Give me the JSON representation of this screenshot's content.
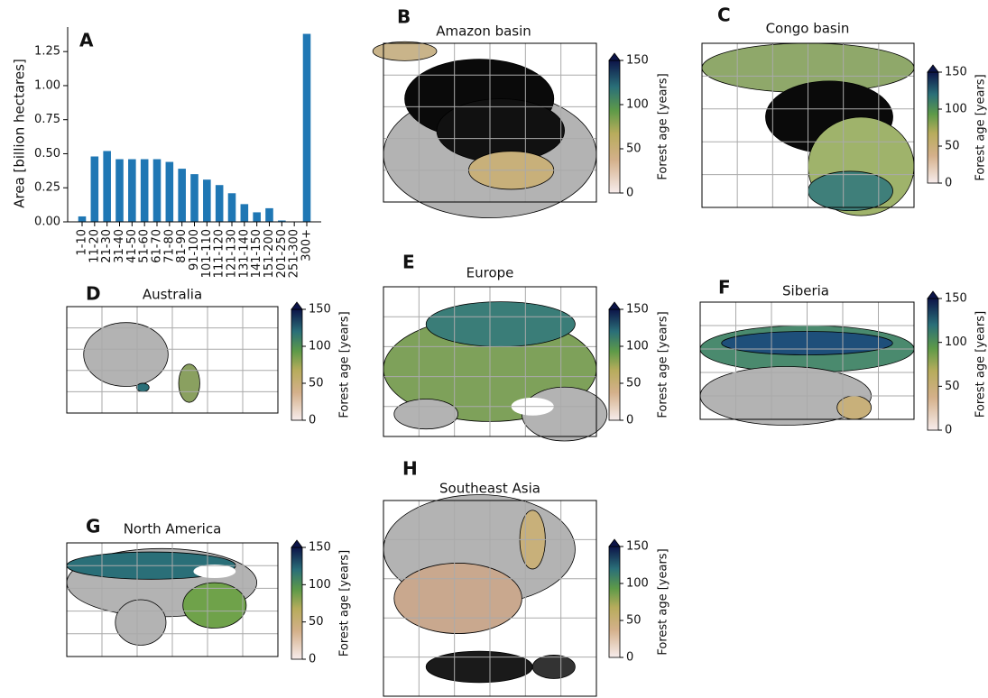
{
  "chart_data": [
    {
      "type": "bar",
      "panel": "A",
      "ylabel": "Area [billion hectares]",
      "categories": [
        "1-10",
        "11-20",
        "21-30",
        "31-40",
        "41-50",
        "51-60",
        "61-70",
        "71-80",
        "81-90",
        "91-100",
        "101-110",
        "111-120",
        "121-130",
        "131-140",
        "141-150",
        "151-200",
        "201-250",
        "251-300",
        "300+"
      ],
      "values": [
        0.04,
        0.48,
        0.52,
        0.46,
        0.46,
        0.46,
        0.46,
        0.44,
        0.39,
        0.35,
        0.31,
        0.27,
        0.21,
        0.13,
        0.07,
        0.1,
        0.01,
        0,
        1.38
      ],
      "color": "#1f77b4",
      "ylim": [
        0,
        1.43
      ],
      "yticks": [
        {
          "value": 0,
          "label": "0.00"
        },
        {
          "value": 0.25,
          "label": "0.25"
        },
        {
          "value": 0.5,
          "label": "0.50"
        },
        {
          "value": 0.75,
          "label": "0.75"
        },
        {
          "value": 1,
          "label": "1.00"
        },
        {
          "value": 1.25,
          "label": "1.25"
        }
      ]
    },
    {
      "type": "map",
      "panel": "B",
      "title": "Amazon basin",
      "colorbar_label": "Forest age [years]",
      "clim": [
        0,
        150
      ],
      "cticks": [
        0,
        50,
        100,
        150
      ]
    },
    {
      "type": "map",
      "panel": "C",
      "title": "Congo basin",
      "colorbar_label": "Forest age [years]",
      "clim": [
        0,
        150
      ],
      "cticks": [
        0,
        50,
        100,
        150
      ]
    },
    {
      "type": "map",
      "panel": "D",
      "title": "Australia",
      "colorbar_label": "Forest age [years]",
      "clim": [
        0,
        150
      ],
      "cticks": [
        0,
        50,
        100,
        150
      ]
    },
    {
      "type": "map",
      "panel": "E",
      "title": "Europe",
      "colorbar_label": "Forest age [years]",
      "clim": [
        0,
        150
      ],
      "cticks": [
        0,
        50,
        100,
        150
      ]
    },
    {
      "type": "map",
      "panel": "F",
      "title": "Siberia",
      "colorbar_label": "Forest age [years]",
      "clim": [
        0,
        150
      ],
      "cticks": [
        0,
        50,
        100,
        150
      ]
    },
    {
      "type": "map",
      "panel": "G",
      "title": "North America",
      "colorbar_label": "Forest age [years]",
      "clim": [
        0,
        150
      ],
      "cticks": [
        0,
        50,
        100,
        150
      ]
    },
    {
      "type": "map",
      "panel": "H",
      "title": "Southeast Asia",
      "colorbar_label": "Forest age [years]",
      "clim": [
        0,
        150
      ],
      "cticks": [
        0,
        50,
        100,
        150
      ]
    }
  ]
}
